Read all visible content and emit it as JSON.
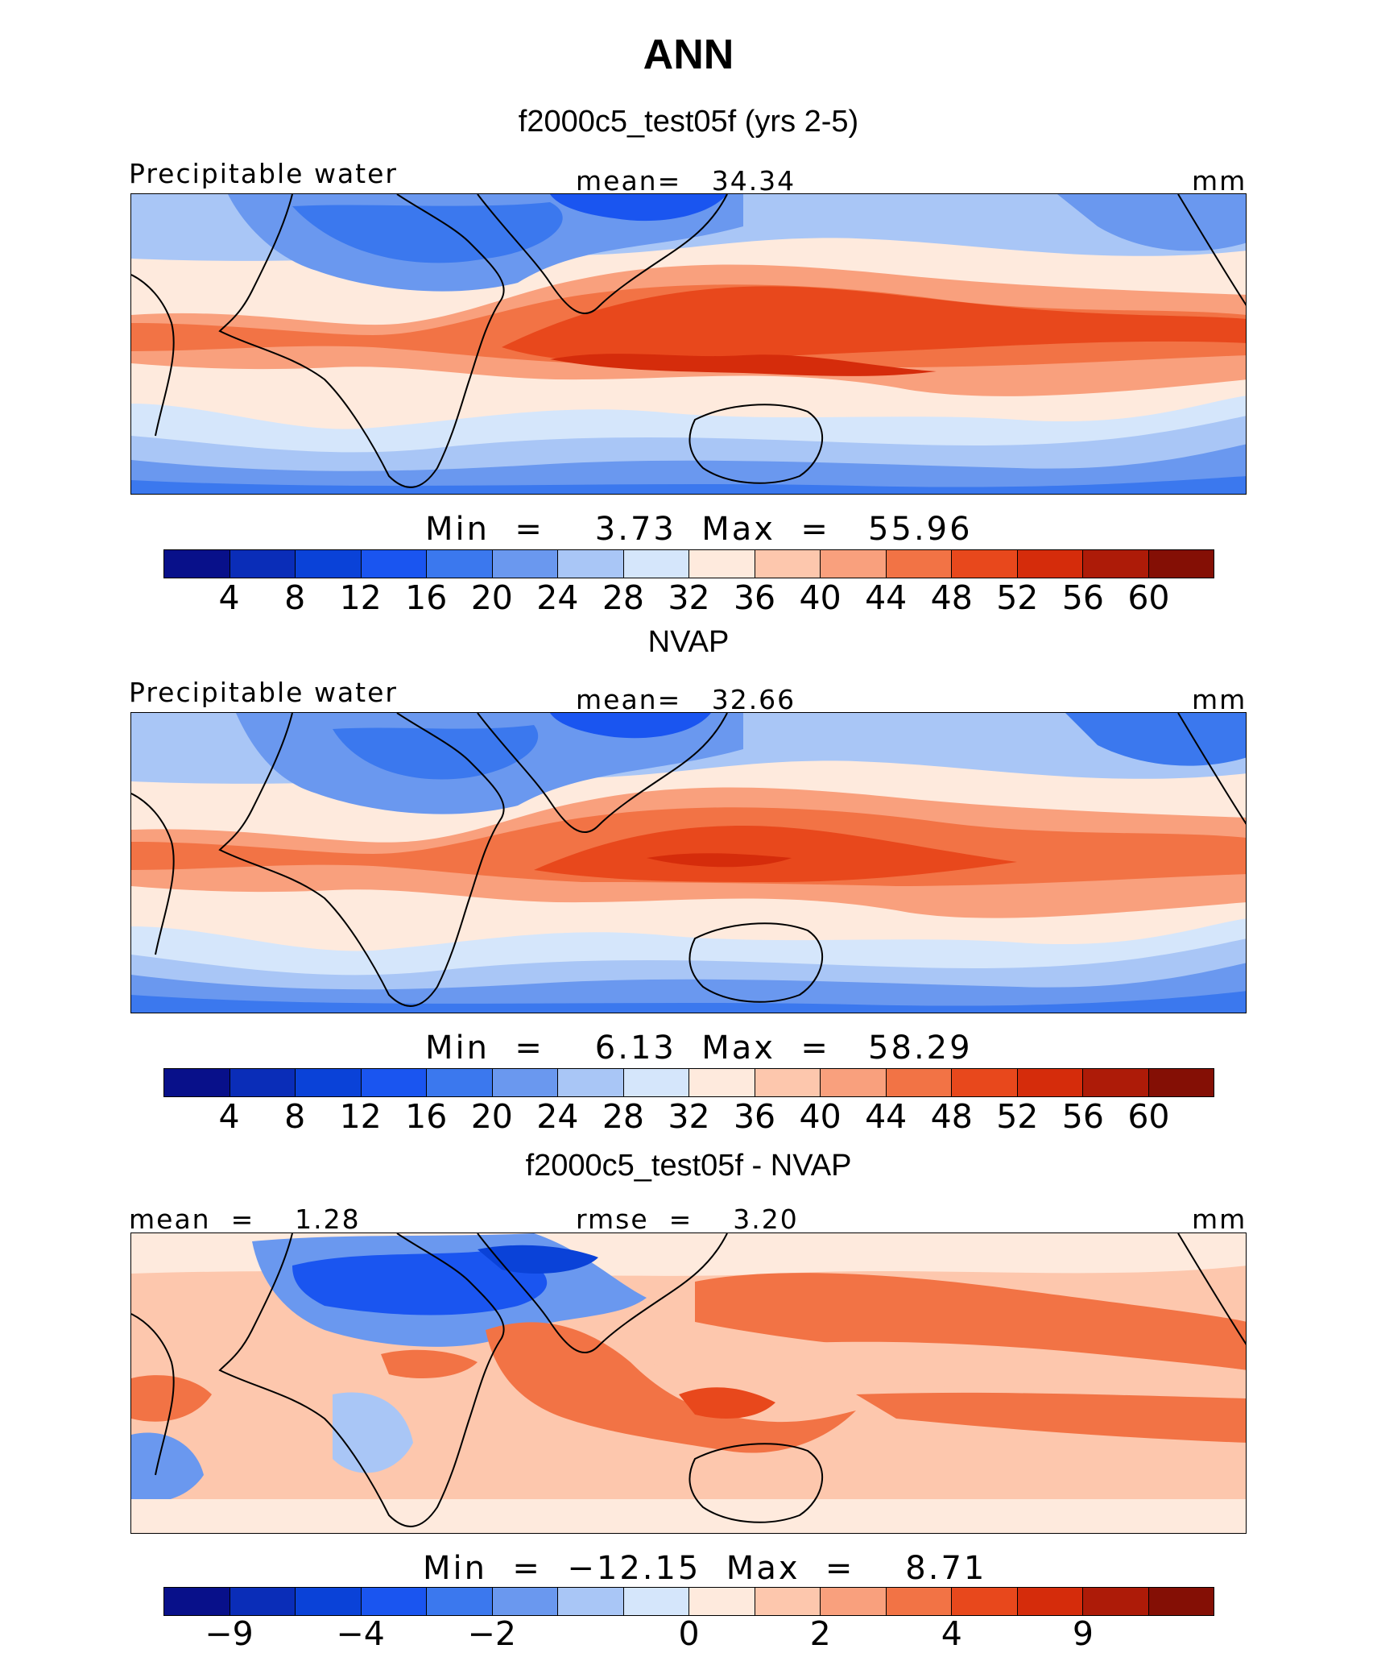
{
  "title": "ANN",
  "units": "mm",
  "palettes": {
    "full": [
      "#08108a",
      "#0a2db8",
      "#0a42d8",
      "#1a55f0",
      "#3b78ee",
      "#6a98ef",
      "#a9c6f6",
      "#d5e6fb",
      "#feeadd",
      "#fdc7ad",
      "#f9a07d",
      "#f27345",
      "#e8481c",
      "#d52c0b",
      "#ad1b08",
      "#840f05"
    ],
    "diff": [
      "#08108a",
      "#0a2db8",
      "#0a42d8",
      "#1a55f0",
      "#3b78ee",
      "#6a98ef",
      "#a9c6f6",
      "#d5e6fb",
      "#feeadd",
      "#fdc7ad",
      "#f9a07d",
      "#f27345",
      "#e8481c",
      "#d52c0b",
      "#ad1b08",
      "#840f05"
    ]
  },
  "panels": [
    {
      "title": "f2000c5_test05f (yrs 2-5)",
      "left_label": "Precipitable water",
      "center_label": "mean=   34.34",
      "right_label": "mm",
      "minmax": "Min  =    3.73  Max  =   55.96",
      "colorbar_ticks": [
        "4",
        "8",
        "12",
        "16",
        "20",
        "24",
        "28",
        "32",
        "36",
        "40",
        "44",
        "48",
        "52",
        "56",
        "60"
      ]
    },
    {
      "title": "NVAP",
      "left_label": "Precipitable water",
      "center_label": "mean=   32.66",
      "right_label": "mm",
      "minmax": "Min  =    6.13  Max  =   58.29",
      "colorbar_ticks": [
        "4",
        "8",
        "12",
        "16",
        "20",
        "24",
        "28",
        "32",
        "36",
        "40",
        "44",
        "48",
        "52",
        "56",
        "60"
      ]
    },
    {
      "title": "f2000c5_test05f - NVAP",
      "left_label": "mean  =    1.28",
      "center_label": "rmse  =    3.20",
      "right_label": "mm",
      "minmax": "Min  =  −12.15  Max  =    8.71",
      "colorbar_ticks": [
        "−9",
        "−4",
        "−2",
        "0",
        "2",
        "4",
        "9"
      ]
    }
  ],
  "chart_data": [
    {
      "type": "heatmap",
      "title": "f2000c5_test05f (yrs 2-5)",
      "variable": "Precipitable water",
      "units": "mm",
      "mean": 34.34,
      "min": 3.73,
      "max": 55.96,
      "levels": [
        4,
        8,
        12,
        16,
        20,
        24,
        28,
        32,
        36,
        40,
        44,
        48,
        52,
        56,
        60
      ]
    },
    {
      "type": "heatmap",
      "title": "NVAP",
      "variable": "Precipitable water",
      "units": "mm",
      "mean": 32.66,
      "min": 6.13,
      "max": 58.29,
      "levels": [
        4,
        8,
        12,
        16,
        20,
        24,
        28,
        32,
        36,
        40,
        44,
        48,
        52,
        56,
        60
      ]
    },
    {
      "type": "heatmap",
      "title": "f2000c5_test05f - NVAP",
      "units": "mm",
      "mean": 1.28,
      "rmse": 3.2,
      "min": -12.15,
      "max": 8.71,
      "levels": [
        -9,
        -4,
        -2,
        0,
        2,
        4,
        9
      ]
    }
  ]
}
